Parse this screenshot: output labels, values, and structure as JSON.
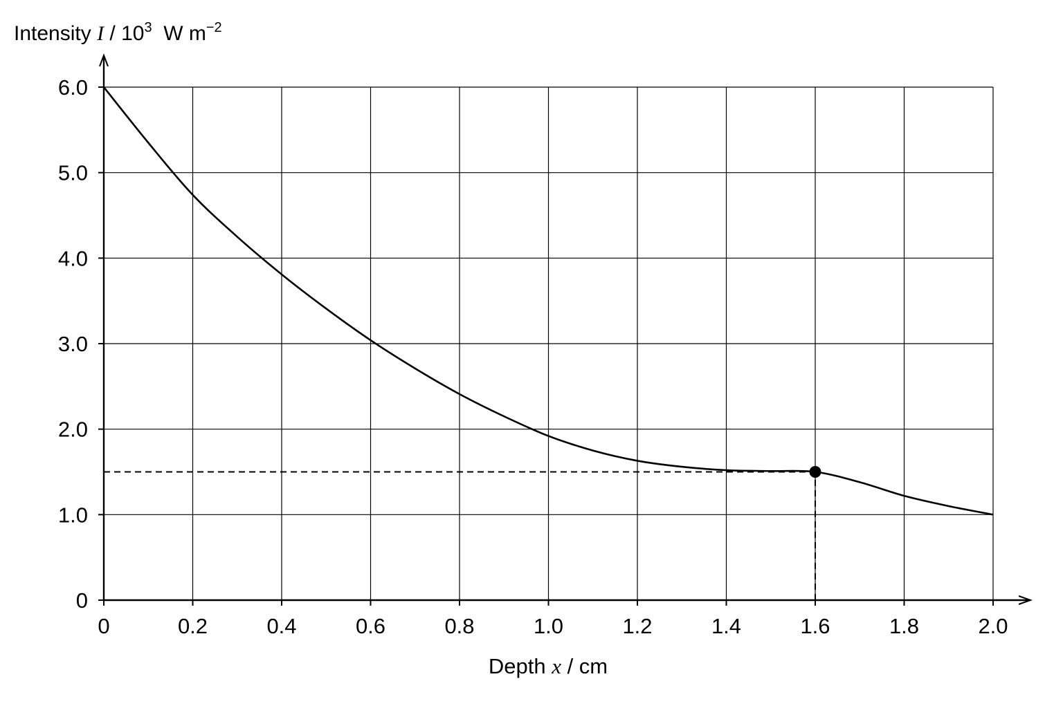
{
  "chart_data": {
    "type": "line",
    "ylabel": {
      "prefix": "Intensity ",
      "symbol": "I",
      "unit_a": " / 10",
      "exp_a": "3",
      "unit_b": "  W m",
      "exp_b": "−2"
    },
    "xlabel": {
      "prefix": "Depth ",
      "symbol": "x",
      "suffix": " / cm"
    },
    "xlim": [
      0,
      2.0
    ],
    "ylim": [
      0,
      6.0
    ],
    "x_ticks": [
      0,
      0.2,
      0.4,
      0.6,
      0.8,
      1.0,
      1.2,
      1.4,
      1.6,
      1.8,
      2.0
    ],
    "x_tick_labels": [
      "0",
      "0.2",
      "0.4",
      "0.6",
      "0.8",
      "1.0",
      "1.2",
      "1.4",
      "1.6",
      "1.8",
      "2.0"
    ],
    "y_ticks": [
      0,
      1.0,
      2.0,
      3.0,
      4.0,
      5.0,
      6.0
    ],
    "y_tick_labels": [
      "0",
      "1.0",
      "2.0",
      "3.0",
      "4.0",
      "5.0",
      "6.0"
    ],
    "grid": true,
    "series": [
      {
        "x": [
          0,
          0.1,
          0.2,
          0.3,
          0.4,
          0.5,
          0.6,
          0.7,
          0.8,
          0.9,
          1.0,
          1.1,
          1.2,
          1.3,
          1.4,
          1.5,
          1.6,
          1.7,
          1.8,
          1.9,
          2.0
        ],
        "y": [
          6.0,
          5.35,
          4.74,
          4.25,
          3.81,
          3.41,
          3.04,
          2.71,
          2.41,
          2.15,
          1.92,
          1.75,
          1.63,
          1.56,
          1.52,
          1.51,
          1.5,
          1.38,
          1.22,
          1.1,
          1.0
        ]
      }
    ],
    "marker": {
      "x": 1.6,
      "y": 1.5
    },
    "guide_lines": [
      {
        "from": [
          0,
          1.5
        ],
        "to": [
          1.6,
          1.5
        ]
      },
      {
        "from": [
          1.6,
          0
        ],
        "to": [
          1.6,
          1.5
        ]
      }
    ]
  }
}
